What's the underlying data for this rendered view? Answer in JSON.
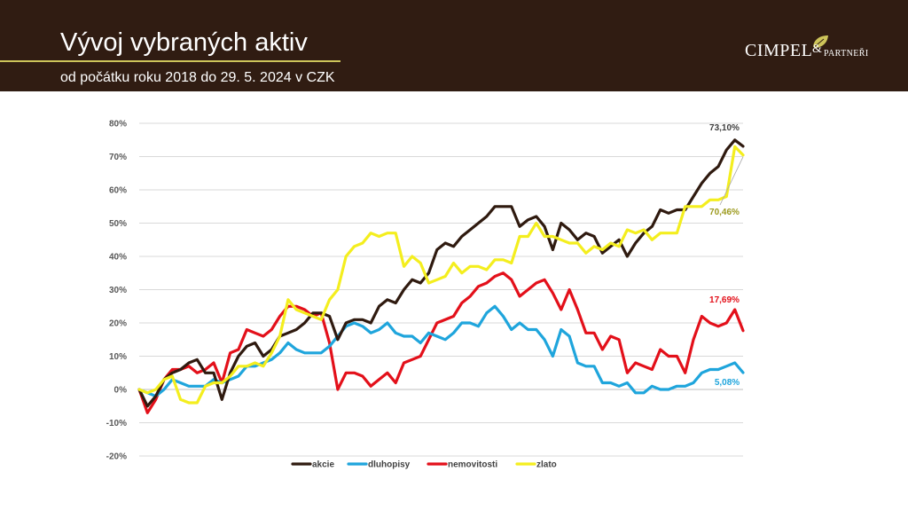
{
  "header": {
    "title": "Vývoj vybraných aktiv",
    "subtitle": "od počátku roku 2018 do 29. 5. 2024 v CZK",
    "logo": {
      "main": "CIMPEL",
      "amp": "&",
      "secondary": "PARTNEŘI",
      "leaf_icon": "leaf-icon"
    }
  },
  "colors": {
    "header_bg": "#301c12",
    "title_underline": "#cdc45a",
    "akcie": "#2f1a0f",
    "dluhopisy": "#1fa5dc",
    "nemovitosti": "#e3101a",
    "zlato": "#f4ee1e",
    "annot_zlato": "#9c9a1d",
    "grid": "#d9d9d9"
  },
  "chart_data": {
    "type": "line",
    "title": "",
    "xlabel": "",
    "ylabel": "",
    "ylim": [
      -20,
      80
    ],
    "y_ticks": [
      "-20%",
      "-10%",
      "0%",
      "10%",
      "20%",
      "30%",
      "40%",
      "50%",
      "60%",
      "70%",
      "80%"
    ],
    "grid": true,
    "legend_position": "bottom",
    "series": [
      {
        "name": "akcie",
        "values": [
          0,
          -5,
          -2,
          3,
          5,
          6,
          8,
          9,
          5,
          5,
          -3,
          5,
          10,
          13,
          14,
          10,
          12,
          16,
          17,
          18,
          20,
          23,
          23,
          22,
          15,
          20,
          21,
          21,
          20,
          25,
          27,
          26,
          30,
          33,
          32,
          35,
          42,
          44,
          43,
          46,
          48,
          50,
          52,
          55,
          55,
          55,
          49,
          51,
          52,
          49,
          42,
          50,
          48,
          45,
          47,
          46,
          41,
          43,
          45,
          40,
          44,
          47,
          49,
          54,
          53,
          54,
          54,
          58,
          62,
          65,
          67,
          72,
          75,
          73.1
        ]
      },
      {
        "name": "dluhopisy",
        "values": [
          0,
          -1,
          -2,
          0,
          3,
          2,
          1,
          1,
          1,
          3,
          2,
          3,
          4,
          7,
          7,
          8,
          9,
          11,
          14,
          12,
          11,
          11,
          11,
          13,
          16,
          19,
          20,
          19,
          17,
          18,
          20,
          17,
          16,
          16,
          14,
          17,
          16,
          15,
          17,
          20,
          20,
          19,
          23,
          25,
          22,
          18,
          20,
          18,
          18,
          15,
          10,
          18,
          16,
          8,
          7,
          7,
          2,
          2,
          1,
          2,
          -1,
          -1,
          1,
          0,
          0,
          1,
          1,
          2,
          5,
          6,
          6,
          7,
          8,
          5.08
        ]
      },
      {
        "name": "nemovitosti",
        "values": [
          0,
          -7,
          -3,
          3,
          6,
          6,
          7,
          5,
          6,
          8,
          2,
          11,
          12,
          18,
          17,
          16,
          18,
          22,
          25,
          25,
          24,
          22,
          23,
          14,
          0,
          5,
          5,
          4,
          1,
          3,
          5,
          2,
          8,
          9,
          10,
          15,
          20,
          21,
          22,
          26,
          28,
          31,
          32,
          34,
          35,
          33,
          28,
          30,
          32,
          33,
          29,
          24,
          30,
          24,
          17,
          17,
          12,
          16,
          15,
          5,
          8,
          7,
          6,
          12,
          10,
          10,
          5,
          15,
          22,
          20,
          19,
          20,
          24,
          17.69
        ]
      },
      {
        "name": "zlato",
        "values": [
          0,
          -1,
          0,
          3,
          4,
          -3,
          -4,
          -4,
          1,
          2,
          2,
          4,
          7,
          7,
          8,
          7,
          11,
          16,
          27,
          24,
          23,
          22,
          21,
          27,
          30,
          40,
          43,
          44,
          47,
          46,
          47,
          47,
          37,
          40,
          38,
          32,
          33,
          34,
          38,
          35,
          37,
          37,
          36,
          39,
          39,
          38,
          46,
          46,
          50,
          46,
          46,
          45,
          44,
          44,
          41,
          43,
          42,
          44,
          43,
          48,
          47,
          48,
          45,
          47,
          47,
          47,
          55,
          55,
          55,
          57,
          57,
          58,
          73,
          70.46
        ]
      }
    ],
    "annotations": [
      {
        "series": "akcie",
        "text": "73,10%"
      },
      {
        "series": "zlato",
        "text": "70,46%"
      },
      {
        "series": "nemovitosti",
        "text": "17,69%"
      },
      {
        "series": "dluhopisy",
        "text": "5,08%"
      }
    ]
  }
}
